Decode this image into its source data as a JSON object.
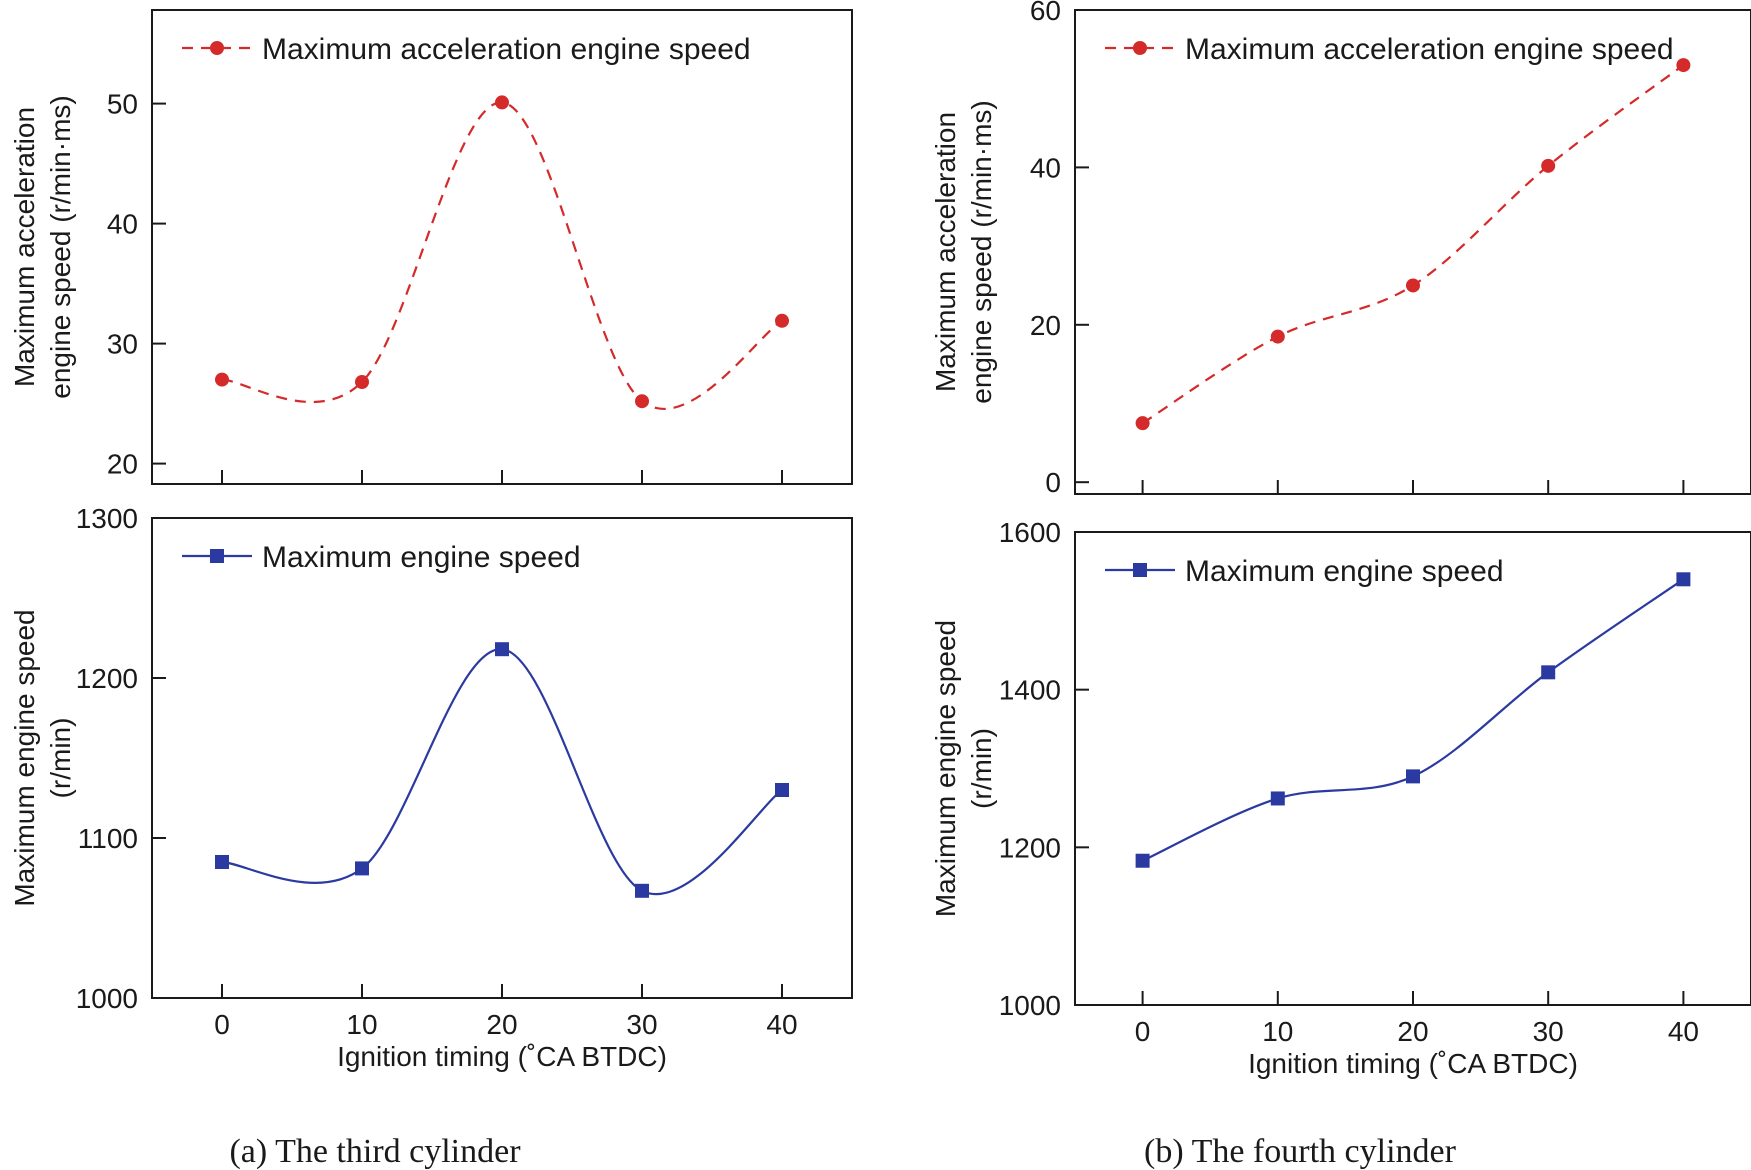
{
  "figure": {
    "caption_a": "(a) The third cylinder",
    "caption_b": "(b) The fourth cylinder"
  },
  "chart_data": [
    {
      "id": "a_top",
      "type": "line",
      "title": "",
      "xlabel": "",
      "ylabel_lines": [
        "Maximum acceleration",
        "engine speed (r/min·ms)"
      ],
      "x": [
        0,
        10,
        20,
        30,
        40
      ],
      "xlim": [
        -5,
        45
      ],
      "ylim": [
        18.3,
        57.8
      ],
      "yticks": [
        20,
        30,
        40,
        50
      ],
      "xticks": [
        0,
        10,
        20,
        30,
        40
      ],
      "show_x_tick_labels": false,
      "series": [
        {
          "name": "Maximum acceleration engine speed",
          "values": [
            27.0,
            26.8,
            50.1,
            25.2,
            31.9
          ],
          "color": "#d42a2a",
          "dash": true,
          "marker": "circle"
        }
      ],
      "legend": "top-left"
    },
    {
      "id": "a_bottom",
      "type": "line",
      "title": "",
      "xlabel": "Ignition timing (˚CA BTDC)",
      "ylabel_lines": [
        "Maximum engine speed",
        "(r/min)"
      ],
      "x": [
        0,
        10,
        20,
        30,
        40
      ],
      "xlim": [
        -5,
        45
      ],
      "ylim": [
        1000,
        1300
      ],
      "yticks": [
        1000,
        1100,
        1200,
        1300
      ],
      "xticks": [
        0,
        10,
        20,
        30,
        40
      ],
      "show_x_tick_labels": true,
      "series": [
        {
          "name": "Maximum engine speed",
          "values": [
            1085,
            1081,
            1218,
            1067,
            1130
          ],
          "color": "#2b3aa0",
          "dash": false,
          "marker": "square"
        }
      ],
      "legend": "top-left"
    },
    {
      "id": "b_top",
      "type": "line",
      "title": "",
      "xlabel": "",
      "ylabel_lines": [
        "Maximum acceleration",
        "engine speed (r/min·ms)"
      ],
      "x": [
        0,
        10,
        20,
        30,
        40
      ],
      "xlim": [
        -5,
        45
      ],
      "ylim": [
        -1.5,
        60
      ],
      "yticks": [
        0,
        20,
        40,
        60
      ],
      "xticks": [
        0,
        10,
        20,
        30,
        40
      ],
      "show_x_tick_labels": false,
      "series": [
        {
          "name": "Maximum acceleration engine speed",
          "values": [
            7.5,
            18.5,
            25.0,
            40.2,
            53.0
          ],
          "color": "#d42a2a",
          "dash": true,
          "marker": "circle"
        }
      ],
      "legend": "top-left"
    },
    {
      "id": "b_bottom",
      "type": "line",
      "title": "",
      "xlabel": "Ignition timing (˚CA BTDC)",
      "ylabel_lines": [
        "Maximum engine speed",
        "(r/min)"
      ],
      "x": [
        0,
        10,
        20,
        30,
        40
      ],
      "xlim": [
        -5,
        45
      ],
      "ylim": [
        1000,
        1600
      ],
      "yticks": [
        1000,
        1200,
        1400,
        1600
      ],
      "xticks": [
        0,
        10,
        20,
        30,
        40
      ],
      "show_x_tick_labels": true,
      "series": [
        {
          "name": "Maximum engine speed",
          "values": [
            1183,
            1262,
            1290,
            1422,
            1540
          ],
          "color": "#2b3aa0",
          "dash": false,
          "marker": "square"
        }
      ],
      "legend": "top-left"
    }
  ]
}
